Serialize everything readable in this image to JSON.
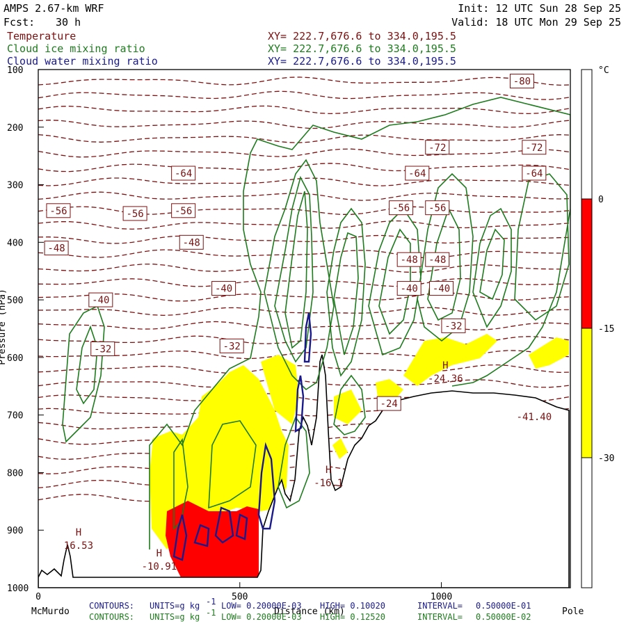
{
  "header": {
    "model": "AMPS 2.67-km WRF",
    "fcst_label": "Fcst:",
    "fcst_value": "30 h",
    "init": "Init: 12 UTC Sun 28 Sep 25",
    "valid": "Valid: 18 UTC Mon 29 Sep 25"
  },
  "legend": [
    {
      "name": "Temperature",
      "xy": "XY= 222.7,676.6 to 334.0,195.5",
      "color": "#7b1010"
    },
    {
      "name": "Cloud ice mixing ratio",
      "xy": "XY= 222.7,676.6 to 334.0,195.5",
      "color": "#1e7b1e"
    },
    {
      "name": "Cloud water mixing ratio",
      "xy": "XY= 222.7,676.6 to 334.0,195.5",
      "color": "#1a1a8c"
    }
  ],
  "chart_data": {
    "type": "cross-section contour",
    "ylabel": "Pressure (hPa)",
    "xlabel": "Distance (km)",
    "ylim": [
      1000,
      100
    ],
    "xlim": [
      0,
      1320
    ],
    "y_ticks": [
      100,
      200,
      300,
      400,
      500,
      600,
      700,
      800,
      900,
      1000
    ],
    "x_ticks": [
      0,
      500,
      1000
    ],
    "x_endpoints": {
      "left": "McMurdo",
      "right": "Pole"
    },
    "temperature_labels": [
      {
        "text": "-80",
        "x": 1200,
        "p": 120
      },
      {
        "text": "-72",
        "x": 990,
        "p": 235
      },
      {
        "text": "-72",
        "x": 1230,
        "p": 235
      },
      {
        "text": "-64",
        "x": 360,
        "p": 280
      },
      {
        "text": "-64",
        "x": 940,
        "p": 280
      },
      {
        "text": "-64",
        "x": 1230,
        "p": 280
      },
      {
        "text": "-56",
        "x": 50,
        "p": 345
      },
      {
        "text": "-56",
        "x": 240,
        "p": 350
      },
      {
        "text": "-56",
        "x": 360,
        "p": 345
      },
      {
        "text": "-56",
        "x": 900,
        "p": 340
      },
      {
        "text": "-56",
        "x": 990,
        "p": 340
      },
      {
        "text": "-48",
        "x": 45,
        "p": 410
      },
      {
        "text": "-48",
        "x": 380,
        "p": 400
      },
      {
        "text": "-48",
        "x": 920,
        "p": 430
      },
      {
        "text": "-48",
        "x": 990,
        "p": 430
      },
      {
        "text": "-40",
        "x": 155,
        "p": 500
      },
      {
        "text": "-40",
        "x": 460,
        "p": 480
      },
      {
        "text": "-40",
        "x": 920,
        "p": 480
      },
      {
        "text": "-40",
        "x": 1000,
        "p": 480
      },
      {
        "text": "-32",
        "x": 160,
        "p": 585
      },
      {
        "text": "-32",
        "x": 480,
        "p": 580
      },
      {
        "text": "-32",
        "x": 1030,
        "p": 545
      },
      {
        "text": "-24",
        "x": 870,
        "p": 680
      }
    ],
    "extrema": [
      {
        "label": "H",
        "value": "16.53",
        "x": 100
      },
      {
        "label": "H",
        "value": "-10.91",
        "x": 300
      },
      {
        "label": "H",
        "value": "-16.1",
        "x": 720
      },
      {
        "label": "H",
        "value": "-24.36",
        "x": 1010
      },
      {
        "label": "",
        "value": "-41.40",
        "x": 1230
      }
    ],
    "colorbar": {
      "unit": "°C",
      "levels": [
        0,
        -15,
        -30
      ],
      "bands": [
        {
          "range": "> 0",
          "color": "#ffffff"
        },
        {
          "range": "0 to -15",
          "color": "#ff0000"
        },
        {
          "range": "-15 to -30",
          "color": "#ffff00"
        },
        {
          "range": "< -30",
          "color": "#ffffff"
        }
      ]
    }
  },
  "footer": {
    "line1": {
      "contours": "CONTOURS:",
      "units": "UNITS=g kg",
      "exp": "-1",
      "low": "LOW= 0.20000E-03",
      "high": "HIGH= 0.10020",
      "interval": "INTERVAL=",
      "interval_value": "0.50000E-01"
    },
    "line2": {
      "contours": "CONTOURS:",
      "units": "UNITS=g kg",
      "exp": "-1",
      "low": "LOW= 0.20000E-03",
      "high": "HIGH= 0.12520",
      "interval": "INTERVAL=",
      "interval_value": "0.50000E-02"
    }
  }
}
